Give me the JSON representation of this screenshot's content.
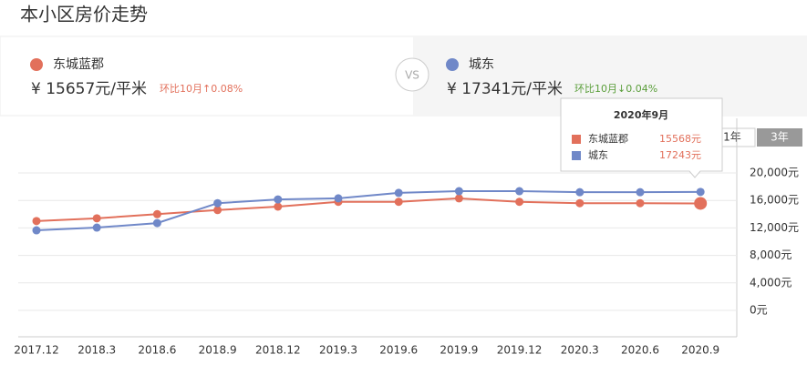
{
  "header": {
    "title": "本小区房价走势"
  },
  "compare": {
    "left": {
      "name": "东城蓝郡",
      "price": "¥ 15657元/平米",
      "change": "环比10月↑0.08%"
    },
    "vs": "VS",
    "right": {
      "name": "城东",
      "price": "¥ 17341元/平米",
      "change": "环比10月↓0.04%"
    }
  },
  "buttons": [
    "1年",
    "3年"
  ],
  "tooltip": {
    "title": "2020年9月",
    "rows": [
      {
        "name": "东城蓝郡",
        "value": "15568元"
      },
      {
        "name": "城东",
        "value": "17243元"
      }
    ]
  },
  "chart_data": {
    "type": "line",
    "categories": [
      "2017.12",
      "2018.3",
      "2018.6",
      "2018.9",
      "2018.12",
      "2019.3",
      "2019.6",
      "2019.9",
      "2019.12",
      "2020.3",
      "2020.6",
      "2020.9"
    ],
    "series": [
      {
        "name": "东城蓝郡",
        "color": "#e2705b",
        "values": [
          13000,
          13400,
          14000,
          14600,
          15100,
          15800,
          15800,
          16300,
          15800,
          15600,
          15600,
          15568
        ]
      },
      {
        "name": "城东",
        "color": "#7088c8",
        "values": [
          11650,
          12050,
          12700,
          15600,
          16150,
          16300,
          17100,
          17350,
          17350,
          17200,
          17200,
          17243
        ]
      }
    ],
    "ylim": [
      0,
      20000
    ],
    "yticks": [
      {
        "value": 0,
        "label": "0元"
      },
      {
        "value": 4000,
        "label": "4,000元"
      },
      {
        "value": 8000,
        "label": "8,000元"
      },
      {
        "value": 12000,
        "label": "12,000元"
      },
      {
        "value": 16000,
        "label": "16,000元"
      },
      {
        "value": 20000,
        "label": "20,000元"
      }
    ],
    "grid": true
  }
}
